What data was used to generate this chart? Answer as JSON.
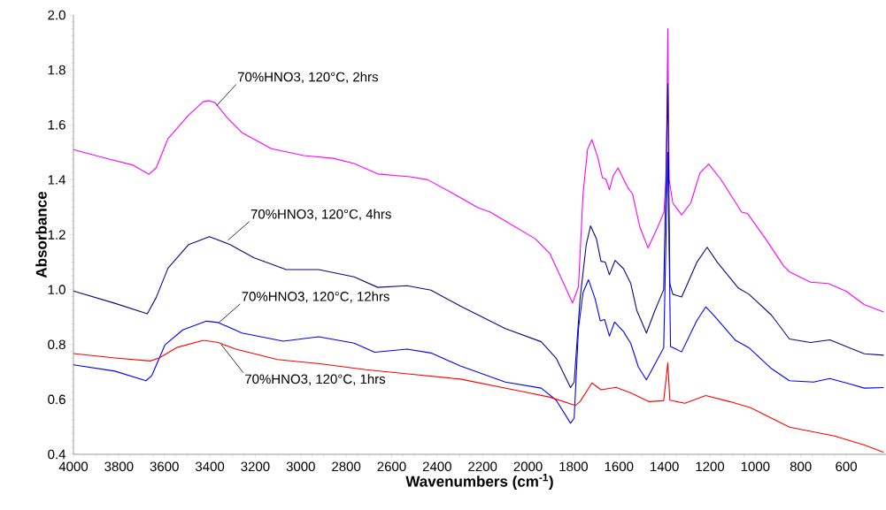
{
  "chart_data": {
    "type": "line",
    "xlabel": "Wavenumbers (cm$^{-1}$)",
    "ylabel": "Absorbance",
    "xlim": [
      4000,
      425
    ],
    "ylim": [
      0.4,
      2.0
    ],
    "xticks": [
      4000,
      3800,
      3600,
      3400,
      3200,
      3000,
      2800,
      2600,
      2400,
      2200,
      2000,
      1800,
      1600,
      1400,
      1200,
      1000,
      800,
      600
    ],
    "yticks": [
      {
        "value": 0.4,
        "label": "0.4"
      },
      {
        "value": 0.6,
        "label": "0.6"
      },
      {
        "value": 0.8,
        "label": "0.8"
      },
      {
        "value": 1.0,
        "label": "1.0"
      },
      {
        "value": 1.2,
        "label": "1.2"
      },
      {
        "value": 1.4,
        "label": "1.4"
      },
      {
        "value": 1.6,
        "label": "1.6"
      },
      {
        "value": 1.8,
        "label": "1.8"
      },
      {
        "value": 2.0,
        "label": "2.0"
      }
    ],
    "series": [
      {
        "color": "#ff00ff",
        "x": [
          4000,
          3844,
          3740,
          3668,
          3636,
          3584,
          3493,
          3428,
          3402,
          3376,
          3324,
          3259,
          3129,
          2986,
          2856,
          2765,
          2661,
          2519,
          2441,
          2324,
          2220,
          2166,
          1968,
          1903,
          1837,
          1804,
          1778,
          1758,
          1738,
          1719,
          1692,
          1673,
          1657,
          1642,
          1626,
          1604,
          1560,
          1540,
          1508,
          1472,
          1429,
          1402,
          1392,
          1385,
          1379,
          1363,
          1324,
          1284,
          1244,
          1205,
          1152,
          1060,
          1034,
          955,
          876,
          850,
          757,
          679,
          600,
          520,
          435
        ],
        "values": [
          1.51,
          1.475,
          1.454,
          1.42,
          1.443,
          1.55,
          1.636,
          1.685,
          1.688,
          1.68,
          1.626,
          1.572,
          1.513,
          1.488,
          1.478,
          1.459,
          1.421,
          1.411,
          1.4,
          1.347,
          1.298,
          1.282,
          1.185,
          1.13,
          1.011,
          0.951,
          1.011,
          1.348,
          1.511,
          1.546,
          1.479,
          1.408,
          1.402,
          1.364,
          1.413,
          1.443,
          1.37,
          1.348,
          1.228,
          1.152,
          1.228,
          1.282,
          1.402,
          1.951,
          1.402,
          1.315,
          1.272,
          1.315,
          1.424,
          1.457,
          1.402,
          1.282,
          1.277,
          1.185,
          1.087,
          1.065,
          1.027,
          1.022,
          0.994,
          0.945,
          0.918
        ]
      },
      {
        "color": "#0a0a78",
        "x": [
          4000,
          3818,
          3675,
          3636,
          3584,
          3493,
          3402,
          3311,
          3207,
          3064,
          2921,
          2765,
          2661,
          2532,
          2427,
          2298,
          2100,
          1942,
          1876,
          1813,
          1797,
          1771,
          1744,
          1725,
          1699,
          1679,
          1660,
          1642,
          1617,
          1580,
          1548,
          1521,
          1479,
          1442,
          1403,
          1385,
          1376,
          1363,
          1324,
          1258,
          1212,
          1166,
          1074,
          1028,
          929,
          850,
          757,
          672,
          586,
          520,
          435
        ],
        "values": [
          0.995,
          0.95,
          0.912,
          0.971,
          1.078,
          1.164,
          1.193,
          1.164,
          1.116,
          1.073,
          1.073,
          1.046,
          1.008,
          1.014,
          0.998,
          0.94,
          0.858,
          0.81,
          0.75,
          0.643,
          0.663,
          0.967,
          1.163,
          1.232,
          1.185,
          1.103,
          1.1,
          1.054,
          1.106,
          1.076,
          1.022,
          0.923,
          0.842,
          0.923,
          1.0,
          1.75,
          1.022,
          0.983,
          0.973,
          1.098,
          1.154,
          1.098,
          1.005,
          0.983,
          0.907,
          0.82,
          0.807,
          0.817,
          0.788,
          0.766,
          0.761
        ]
      },
      {
        "color": "#0000ff",
        "x": [
          4000,
          3818,
          3681,
          3655,
          3597,
          3519,
          3415,
          3363,
          3259,
          3077,
          2921,
          2765,
          2675,
          2532,
          2427,
          2298,
          2100,
          1942,
          1876,
          1813,
          1797,
          1778,
          1758,
          1734,
          1705,
          1682,
          1663,
          1642,
          1619,
          1580,
          1548,
          1514,
          1479,
          1435,
          1403,
          1385,
          1373,
          1324,
          1258,
          1218,
          1178,
          1087,
          1028,
          929,
          850,
          744,
          672,
          586,
          520,
          435
        ],
        "values": [
          0.726,
          0.703,
          0.668,
          0.687,
          0.799,
          0.853,
          0.885,
          0.88,
          0.842,
          0.812,
          0.828,
          0.805,
          0.772,
          0.783,
          0.769,
          0.722,
          0.663,
          0.641,
          0.597,
          0.513,
          0.532,
          0.858,
          0.989,
          1.036,
          0.967,
          0.886,
          0.891,
          0.831,
          0.882,
          0.847,
          0.804,
          0.717,
          0.671,
          0.739,
          0.788,
          1.5,
          0.793,
          0.773,
          0.886,
          0.937,
          0.902,
          0.815,
          0.788,
          0.712,
          0.668,
          0.663,
          0.676,
          0.657,
          0.641,
          0.643
        ]
      },
      {
        "color": "#ff0000",
        "x": [
          4000,
          3818,
          3662,
          3623,
          3545,
          3428,
          3363,
          3285,
          3103,
          2908,
          2714,
          2519,
          2298,
          2034,
          1903,
          1791,
          1771,
          1719,
          1679,
          1613,
          1548,
          1469,
          1403,
          1385,
          1376,
          1310,
          1218,
          1113,
          1021,
          850,
          652,
          520,
          435
        ],
        "values": [
          0.767,
          0.751,
          0.74,
          0.751,
          0.789,
          0.815,
          0.807,
          0.783,
          0.745,
          0.729,
          0.708,
          0.692,
          0.674,
          0.63,
          0.608,
          0.578,
          0.592,
          0.66,
          0.635,
          0.644,
          0.624,
          0.592,
          0.595,
          0.733,
          0.597,
          0.586,
          0.614,
          0.592,
          0.57,
          0.499,
          0.467,
          0.434,
          0.407
        ]
      }
    ],
    "annotations": [
      {
        "text": "70%HNO3, 120°C, 2hrs",
        "x": 3370,
        "y": 1.67
      },
      {
        "text": "70%HNO3, 120°C, 4hrs",
        "x": 3320,
        "y": 1.18
      },
      {
        "text": "70%HNO3, 120°C, 12hrs",
        "x": 3360,
        "y": 0.88
      },
      {
        "text": "70%HNO3, 120°C, 1hrs",
        "x": 3350,
        "y": 0.8
      }
    ]
  }
}
